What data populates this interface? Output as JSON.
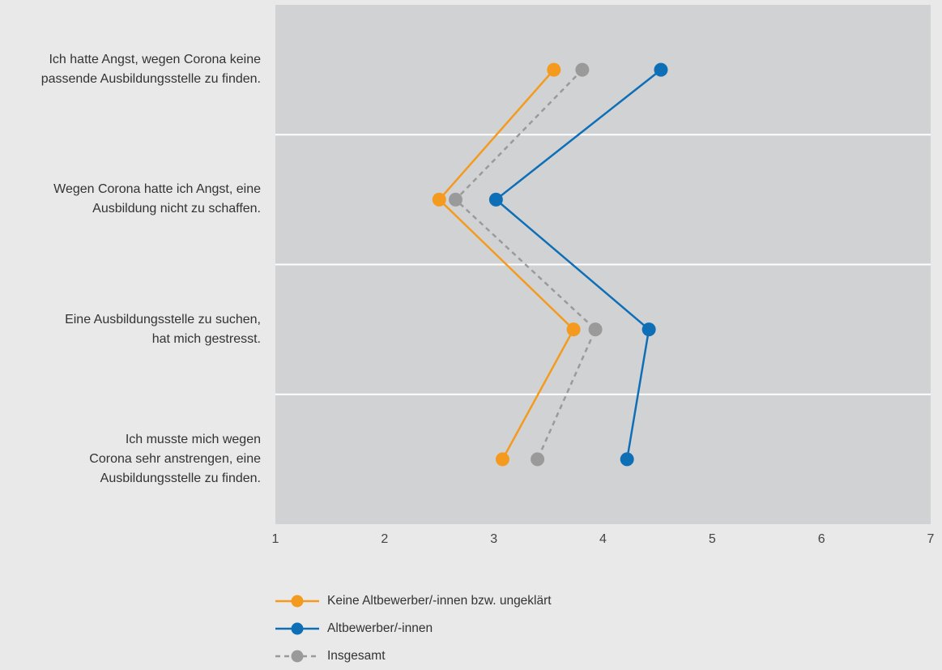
{
  "chart_data": {
    "type": "line",
    "orientation": "horizontal",
    "categories": [
      "Ich hatte Angst, wegen Corona keine passende Ausbildungsstelle zu finden.",
      "Wegen Corona hatte ich Angst, eine Ausbildung nicht zu schaffen.",
      "Eine Ausbildungsstelle zu suchen, hat mich gestresst.",
      "Ich musste mich wegen Corona sehr anstrengen, eine Ausbildungsstelle zu finden."
    ],
    "category_lines": [
      [
        "Ich hatte Angst, wegen Corona keine",
        "passende Ausbildungsstelle zu finden."
      ],
      [
        "Wegen Corona hatte ich Angst, eine",
        "Ausbildung nicht zu schaffen."
      ],
      [
        "Eine Ausbildungsstelle zu suchen,",
        "hat mich gestresst."
      ],
      [
        "Ich musste mich wegen",
        "Corona sehr anstrengen, eine",
        "Ausbildungsstelle zu finden."
      ]
    ],
    "series": [
      {
        "name": "Keine Altbewerber/-innen bzw. ungeklärt",
        "values": [
          3.55,
          2.5,
          3.73,
          3.08
        ],
        "color": "#f39a1f",
        "dashed": false
      },
      {
        "name": "Altbewerber/-innen",
        "values": [
          4.53,
          3.02,
          4.42,
          4.22
        ],
        "color": "#0f6fb6",
        "dashed": false
      },
      {
        "name": "Insgesamt",
        "values": [
          3.81,
          2.65,
          3.93,
          3.4
        ],
        "color": "#9a9a9a",
        "dashed": true
      }
    ],
    "xlim": [
      1,
      7
    ],
    "xticks": [
      "1",
      "2",
      "3",
      "4",
      "5",
      "6",
      "7"
    ],
    "grid": "horizontal separators between categories",
    "legend_position": "bottom-left"
  }
}
